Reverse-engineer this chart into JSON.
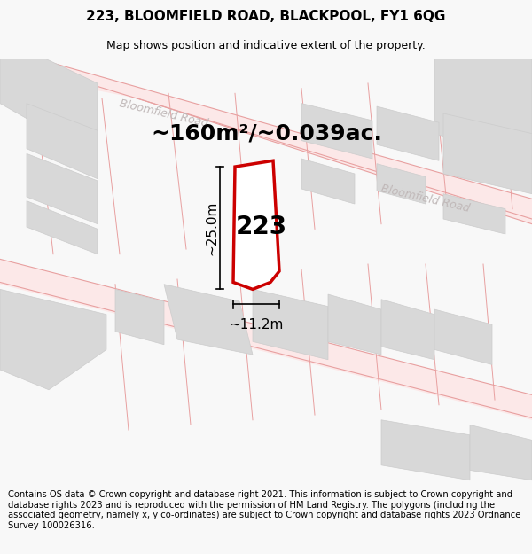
{
  "title": "223, BLOOMFIELD ROAD, BLACKPOOL, FY1 6QG",
  "subtitle": "Map shows position and indicative extent of the property.",
  "area_text": "~160m²/~0.039ac.",
  "label": "223",
  "dim_width": "~11.2m",
  "dim_height": "~25.0m",
  "footer": "Contains OS data © Crown copyright and database right 2021. This information is subject to Crown copyright and database rights 2023 and is reproduced with the permission of HM Land Registry. The polygons (including the associated geometry, namely x, y co-ordinates) are subject to Crown copyright and database rights 2023 Ordnance Survey 100026316.",
  "bg_color": "#f8f8f8",
  "map_bg": "#ffffff",
  "road_line_color": "#e8a0a0",
  "building_color": "#d8d8d8",
  "building_edge": "#cccccc",
  "highlight_color": "#cc0000",
  "text_color": "#000000",
  "road_label_color": "#c0b8b8",
  "title_fontsize": 11,
  "subtitle_fontsize": 9,
  "area_fontsize": 18,
  "label_fontsize": 20,
  "dim_fontsize": 11,
  "footer_fontsize": 7.2
}
